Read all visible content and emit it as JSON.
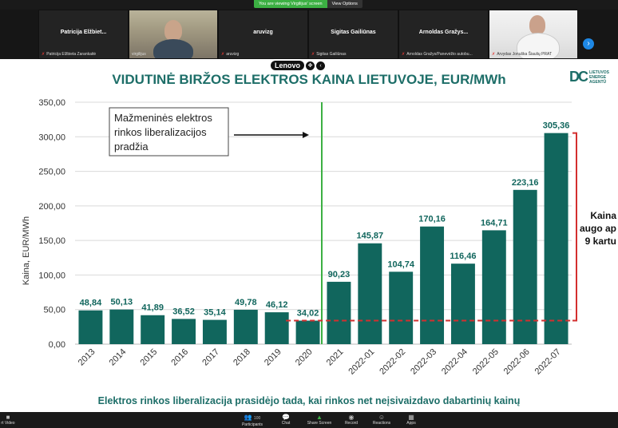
{
  "meeting": {
    "viewing_banner": "You are viewing Virgilijus' screen",
    "view_options": "View Options",
    "participants": [
      {
        "name": "Patricija  Elžbiet...",
        "label": "Patricija Elžbieta Zarankaitė",
        "video": false
      },
      {
        "name": "",
        "label": "virgilijus",
        "video": true
      },
      {
        "name": "aruvizg",
        "label": "aruvizg",
        "video": false
      },
      {
        "name": "Sigitas Gailiūnas",
        "label": "Sigitas Gailiūnas",
        "video": false
      },
      {
        "name": "Arnoldas  Gražys...",
        "label": "Arnoldas Gražys/Panevėžio autobu...",
        "video": false
      },
      {
        "name": "",
        "label": "Arvydas Jonuška Šiaulių PRAT",
        "video": true
      }
    ],
    "next_icon": "chevron-right-icon"
  },
  "overlay": {
    "brand": "Lenovo",
    "icon1": "move-icon",
    "icon2": "chevron-left-icon"
  },
  "slide": {
    "title": "VIDUTINĖ BIRŽOS ELEKTROS KAINA LIETUVOJE, EUR/MWh",
    "logo_mark": "DC",
    "logo_text": [
      "LIETUVOS",
      "ENERGE",
      "AGENTŪ"
    ],
    "annotation": [
      "Mažmeninės elektros",
      "rinkos liberalizacijos",
      "pradžia"
    ],
    "side_note": [
      "Kaina",
      "augo ap",
      "9 kartu"
    ],
    "bottom_text": "Elektros rinkos liberalizacija prasidėjo tada, kai rinkos net neįsivaizdavo dabartinių kainų"
  },
  "chart_data": {
    "type": "bar",
    "title": "VIDUTINĖ BIRŽOS ELEKTROS KAINA LIETUVOJE, EUR/MWh",
    "xlabel": "",
    "ylabel": "Kaina, EUR/MWh",
    "categories": [
      "2013",
      "2014",
      "2015",
      "2016",
      "2017",
      "2018",
      "2019",
      "2020",
      "2021",
      "2022-01",
      "2022-02",
      "2022-03",
      "2022-04",
      "2022-05",
      "2022-06",
      "2022-07"
    ],
    "values": [
      48.84,
      50.13,
      41.89,
      36.52,
      35.14,
      49.78,
      46.12,
      34.02,
      90.23,
      145.87,
      104.74,
      170.16,
      116.46,
      164.71,
      223.16,
      305.36
    ],
    "value_labels": [
      "48,84",
      "50,13",
      "41,89",
      "36,52",
      "35,14",
      "49,78",
      "46,12",
      "34,02",
      "90,23",
      "145,87",
      "104,74",
      "170,16",
      "116,46",
      "164,71",
      "223,16",
      "305,36"
    ],
    "ylim": [
      0,
      350
    ],
    "yticks": [
      0,
      50,
      100,
      150,
      200,
      250,
      300,
      350
    ],
    "ytick_labels": [
      "0,00",
      "50,00",
      "100,00",
      "150,00",
      "200,00",
      "250,00",
      "300,00",
      "350,00"
    ],
    "grid": true,
    "reference_line_value": 34.02,
    "bar_color": "#11665d",
    "value_label_color": "#11665d",
    "divider_color": "#3cb043",
    "reference_color": "#d32f2f"
  },
  "toolbar": {
    "items": [
      {
        "label": "Participants",
        "count": "100",
        "icon": "participants-icon"
      },
      {
        "label": "Chat",
        "icon": "chat-icon"
      },
      {
        "label": "Share Screen",
        "icon": "share-screen-icon"
      },
      {
        "label": "Record",
        "icon": "record-icon"
      },
      {
        "label": "Reactions",
        "icon": "reactions-icon"
      },
      {
        "label": "Apps",
        "icon": "apps-icon"
      }
    ],
    "left_label": "rt Video"
  }
}
